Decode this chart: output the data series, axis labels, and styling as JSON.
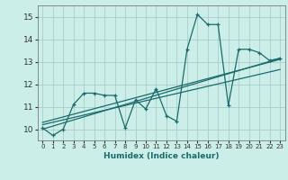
{
  "xlabel": "Humidex (Indice chaleur)",
  "background_color": "#cceee8",
  "grid_color": "#aacccc",
  "line_color": "#1a6b6b",
  "xlim": [
    -0.5,
    23.5
  ],
  "ylim": [
    9.5,
    15.5
  ],
  "yticks": [
    10,
    11,
    12,
    13,
    14,
    15
  ],
  "xticks": [
    0,
    1,
    2,
    3,
    4,
    5,
    6,
    7,
    8,
    9,
    10,
    11,
    12,
    13,
    14,
    15,
    16,
    17,
    18,
    19,
    20,
    21,
    22,
    23
  ],
  "curve1_x": [
    0,
    1,
    2,
    3,
    4,
    5,
    6,
    7,
    8,
    9,
    10,
    11,
    12,
    13,
    14,
    15,
    16,
    17,
    18,
    19,
    20,
    21,
    22,
    23
  ],
  "curve1_y": [
    10.05,
    9.72,
    10.0,
    11.1,
    11.6,
    11.6,
    11.5,
    11.5,
    10.05,
    11.3,
    10.9,
    11.8,
    10.6,
    10.35,
    13.55,
    15.1,
    14.65,
    14.65,
    11.05,
    13.55,
    13.55,
    13.4,
    13.05,
    13.15
  ],
  "trend1_x": [
    0,
    23
  ],
  "trend1_y": [
    10.0,
    13.15
  ],
  "trend2_x": [
    0,
    23
  ],
  "trend2_y": [
    10.2,
    12.65
  ],
  "trend3_x": [
    0,
    23
  ],
  "trend3_y": [
    10.3,
    13.1
  ]
}
